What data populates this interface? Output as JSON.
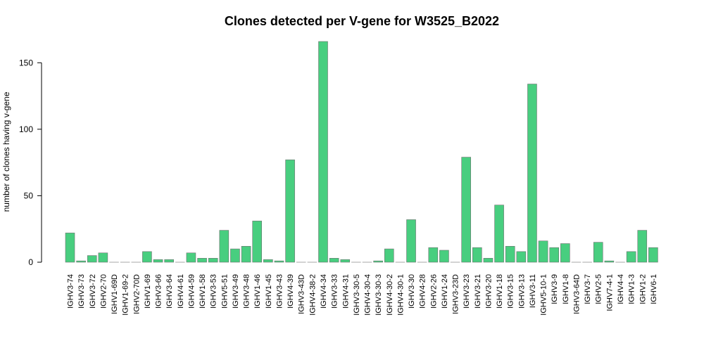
{
  "chart_data": {
    "type": "bar",
    "title": "Clones detected per V-gene for W3525_B2022",
    "xlabel": "",
    "ylabel": "number of clones having v-gene",
    "ylim": [
      0,
      166
    ],
    "yticks": [
      0,
      50,
      100,
      150
    ],
    "grid": false,
    "bar_color": "#48CE7F",
    "bar_stroke": "#707070",
    "categories": [
      "IGHV3-74",
      "IGHV3-73",
      "IGHV3-72",
      "IGHV2-70",
      "IGHV1-69D",
      "IGHV1-69-2",
      "IGHV2-70D",
      "IGHV1-69",
      "IGHV3-66",
      "IGHV3-64",
      "IGHV4-61",
      "IGHV4-59",
      "IGHV1-58",
      "IGHV3-53",
      "IGHV5-51",
      "IGHV3-49",
      "IGHV3-48",
      "IGHV1-46",
      "IGHV1-45",
      "IGHV3-43",
      "IGHV4-39",
      "IGHV3-43D",
      "IGHV4-38-2",
      "IGHV4-34",
      "IGHV3-33",
      "IGHV4-31",
      "IGHV3-30-5",
      "IGHV4-30-4",
      "IGHV3-30-3",
      "IGHV4-30-2",
      "IGHV4-30-1",
      "IGHV3-30",
      "IGHV4-28",
      "IGHV2-26",
      "IGHV1-24",
      "IGHV3-23D",
      "IGHV3-23",
      "IGHV3-21",
      "IGHV3-20",
      "IGHV1-18",
      "IGHV3-15",
      "IGHV3-13",
      "IGHV3-11",
      "IGHV5-10-1",
      "IGHV3-9",
      "IGHV1-8",
      "IGHV3-64D",
      "IGHV3-7",
      "IGHV2-5",
      "IGHV7-4-1",
      "IGHV4-4",
      "IGHV1-3",
      "IGHV1-2",
      "IGHV6-1"
    ],
    "values": [
      22,
      1,
      5,
      7,
      0,
      0,
      0,
      8,
      2,
      2,
      0,
      7,
      3,
      3,
      24,
      10,
      12,
      31,
      2,
      1,
      77,
      0,
      0,
      166,
      3,
      2,
      0,
      0,
      1,
      10,
      0,
      32,
      0,
      11,
      9,
      0,
      79,
      11,
      3,
      43,
      12,
      8,
      134,
      16,
      11,
      14,
      0,
      0,
      15,
      1,
      0,
      8,
      24,
      11
    ]
  }
}
